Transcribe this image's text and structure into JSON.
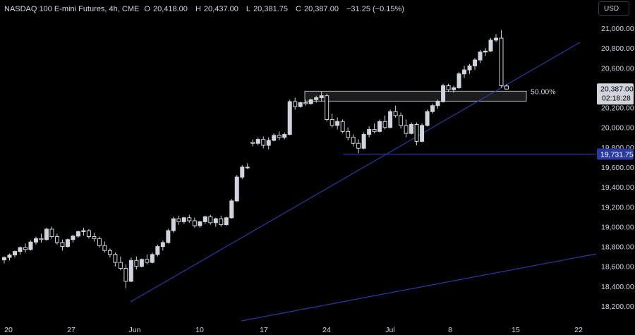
{
  "header": {
    "symbol": "NASDAQ 100 E-mini Futures, 4h, CME",
    "open_label": "O",
    "open": "20,418.00",
    "high_label": "H",
    "high": "20,437.00",
    "low_label": "L",
    "low": "20,381.75",
    "close_label": "C",
    "close": "20,387.00",
    "change": "−31.25 (−0.15%)"
  },
  "currency_button": "USD",
  "colors": {
    "background": "#000000",
    "candle": "#d1d4dc",
    "trendline": "#2a3a9e",
    "hline": "#2a3a9e",
    "zone_fill": "#1c1c1c",
    "zone_border": "#b2b5be",
    "price_tag_bg": "#d1d4dc",
    "level_tag_bg": "#2a3a9e"
  },
  "chart_data": {
    "type": "candlestick",
    "symbol": "NASDAQ 100 E-mini Futures",
    "interval": "4h",
    "y_axis": {
      "ticks": [
        18200,
        18400,
        18600,
        18800,
        19000,
        19200,
        19400,
        19600,
        19800,
        20000,
        20200,
        20400,
        20600,
        20800,
        21000
      ],
      "tick_labels": [
        "18,200.00",
        "18,400.00",
        "18,600.00",
        "18,800.00",
        "19,000.00",
        "19,200.00",
        "19,400.00",
        "19,600.00",
        "19,800.00",
        "20,000.00",
        "20,200.00",
        "20,400.00",
        "20,600.00",
        "20,800.00",
        "21,000.00"
      ],
      "range": [
        18130,
        21100
      ]
    },
    "x_axis": {
      "tick_labels": [
        "20",
        "27",
        "Jun",
        "10",
        "17",
        "24",
        "Jul",
        "8",
        "15",
        "22"
      ]
    },
    "price_label": {
      "value": 20387.0,
      "text": "20,387.00",
      "countdown": "02:18:28"
    },
    "horizontal_level": {
      "value": 19731.75,
      "text": "19,731.75"
    },
    "zone": {
      "top": 20365,
      "bottom": 20265,
      "label": "50.00%"
    },
    "candles": [
      [
        18665,
        18700,
        18630,
        18690
      ],
      [
        18690,
        18730,
        18660,
        18715
      ],
      [
        18715,
        18760,
        18690,
        18750
      ],
      [
        18750,
        18800,
        18720,
        18790
      ],
      [
        18790,
        18830,
        18740,
        18770
      ],
      [
        18770,
        18860,
        18760,
        18845
      ],
      [
        18845,
        18900,
        18820,
        18880
      ],
      [
        18880,
        18930,
        18840,
        18870
      ],
      [
        18870,
        18990,
        18860,
        18975
      ],
      [
        18975,
        19000,
        18880,
        18900
      ],
      [
        18900,
        18930,
        18820,
        18840
      ],
      [
        18840,
        18870,
        18760,
        18800
      ],
      [
        18800,
        18880,
        18790,
        18870
      ],
      [
        18870,
        18920,
        18840,
        18905
      ],
      [
        18905,
        18960,
        18890,
        18950
      ],
      [
        18950,
        18990,
        18910,
        18960
      ],
      [
        18960,
        18975,
        18880,
        18900
      ],
      [
        18900,
        18940,
        18850,
        18880
      ],
      [
        18880,
        18900,
        18790,
        18810
      ],
      [
        18810,
        18850,
        18740,
        18760
      ],
      [
        18760,
        18780,
        18690,
        18720
      ],
      [
        18720,
        18740,
        18600,
        18640
      ],
      [
        18640,
        18700,
        18560,
        18580
      ],
      [
        18580,
        18620,
        18380,
        18450
      ],
      [
        18450,
        18690,
        18440,
        18660
      ],
      [
        18660,
        18700,
        18570,
        18600
      ],
      [
        18600,
        18680,
        18590,
        18670
      ],
      [
        18670,
        18720,
        18620,
        18640
      ],
      [
        18640,
        18740,
        18630,
        18720
      ],
      [
        18720,
        18820,
        18700,
        18800
      ],
      [
        18800,
        18860,
        18760,
        18840
      ],
      [
        18840,
        18980,
        18830,
        18960
      ],
      [
        18960,
        19100,
        18940,
        19080
      ],
      [
        19080,
        19110,
        19020,
        19050
      ],
      [
        19050,
        19100,
        19030,
        19090
      ],
      [
        19090,
        19120,
        19040,
        19060
      ],
      [
        19060,
        19090,
        18990,
        19010
      ],
      [
        19010,
        19060,
        18990,
        19050
      ],
      [
        19050,
        19110,
        19030,
        19100
      ],
      [
        19100,
        19120,
        19020,
        19040
      ],
      [
        19040,
        19090,
        19000,
        19080
      ],
      [
        19080,
        19110,
        19000,
        19020
      ],
      [
        19020,
        19100,
        19010,
        19090
      ],
      [
        19090,
        19280,
        19080,
        19260
      ],
      [
        19260,
        19520,
        19250,
        19500
      ],
      [
        19500,
        19620,
        19480,
        19600
      ],
      [
        19600,
        19640,
        19580,
        19600
      ],
      [
        19850,
        19880,
        19810,
        19840
      ],
      [
        19840,
        19900,
        19820,
        19880
      ],
      [
        19880,
        19910,
        19790,
        19820
      ],
      [
        19820,
        19900,
        19780,
        19870
      ],
      [
        19870,
        19940,
        19860,
        19920
      ],
      [
        19920,
        19960,
        19870,
        19900
      ],
      [
        19900,
        19950,
        19880,
        19930
      ],
      [
        19930,
        20280,
        19920,
        20260
      ],
      [
        20260,
        20300,
        20180,
        20210
      ],
      [
        20210,
        20260,
        20200,
        20250
      ],
      [
        20250,
        20280,
        20220,
        20240
      ],
      [
        20240,
        20290,
        20230,
        20280
      ],
      [
        20280,
        20320,
        20250,
        20300
      ],
      [
        20300,
        20360,
        20260,
        20320
      ],
      [
        20320,
        20340,
        20060,
        20080
      ],
      [
        20080,
        20140,
        20000,
        20020
      ],
      [
        20020,
        20100,
        19980,
        20060
      ],
      [
        20060,
        20080,
        19940,
        19960
      ],
      [
        19960,
        20000,
        19870,
        19900
      ],
      [
        19900,
        19930,
        19810,
        19840
      ],
      [
        19840,
        19880,
        19740,
        19790
      ],
      [
        19790,
        19950,
        19780,
        19930
      ],
      [
        19930,
        20010,
        19900,
        19980
      ],
      [
        19980,
        20040,
        19940,
        19960
      ],
      [
        19960,
        20080,
        19950,
        20060
      ],
      [
        20060,
        20120,
        19980,
        20000
      ],
      [
        20000,
        20180,
        19990,
        20160
      ],
      [
        20160,
        20220,
        20100,
        20120
      ],
      [
        20120,
        20150,
        19990,
        20020
      ],
      [
        20020,
        20080,
        19900,
        19940
      ],
      [
        19940,
        20050,
        19930,
        20030
      ],
      [
        20030,
        20050,
        19820,
        19860
      ],
      [
        19860,
        20040,
        19850,
        20020
      ],
      [
        20020,
        20180,
        20010,
        20160
      ],
      [
        20160,
        20240,
        20140,
        20220
      ],
      [
        20220,
        20280,
        20190,
        20260
      ],
      [
        20260,
        20440,
        20250,
        20420
      ],
      [
        20420,
        20440,
        20360,
        20380
      ],
      [
        20380,
        20420,
        20350,
        20400
      ],
      [
        20400,
        20560,
        20390,
        20540
      ],
      [
        20540,
        20620,
        20500,
        20580
      ],
      [
        20580,
        20640,
        20540,
        20620
      ],
      [
        20620,
        20700,
        20580,
        20680
      ],
      [
        20680,
        20780,
        20650,
        20760
      ],
      [
        20760,
        20800,
        20720,
        20770
      ],
      [
        20770,
        20900,
        20760,
        20880
      ],
      [
        20880,
        20940,
        20860,
        20900
      ],
      [
        20900,
        20980,
        20400,
        20420
      ],
      [
        20418,
        20437,
        20381.75,
        20387
      ]
    ]
  }
}
